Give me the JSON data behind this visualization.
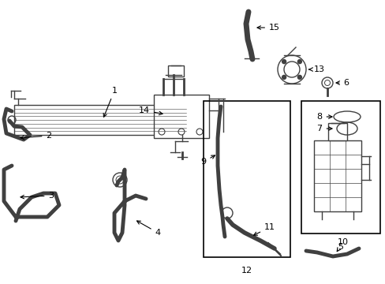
{
  "bg_color": "#ffffff",
  "line_color": "#404040",
  "lw": 1.0
}
